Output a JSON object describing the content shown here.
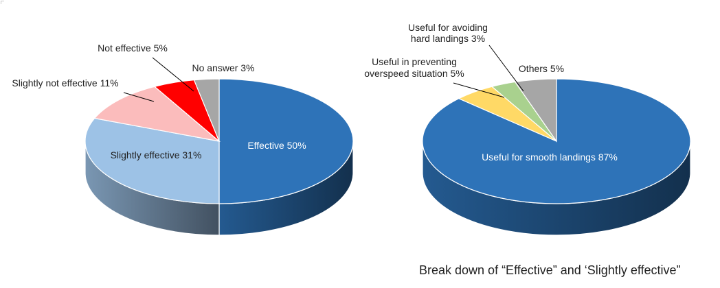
{
  "chart_data": [
    {
      "type": "pie",
      "style": "3d",
      "slices": [
        {
          "label": "Effective 50%",
          "value": 50,
          "color": "#2e73b8"
        },
        {
          "label": "Slightly effective 31%",
          "value": 31,
          "color": "#9dc2e6"
        },
        {
          "label": "Slightly not effective 11%",
          "value": 11,
          "color": "#fbbcbc"
        },
        {
          "label": "Not effective 5%",
          "value": 5,
          "color": "#ff0000"
        },
        {
          "label": "No answer 3%",
          "value": 3,
          "color": "#a6a6a6"
        }
      ]
    },
    {
      "type": "pie",
      "style": "3d",
      "slices": [
        {
          "label": "Useful for smooth landings   87%",
          "value": 87,
          "color": "#2e73b8"
        },
        {
          "label": "Useful in preventing\noverspeed situation 5%",
          "value": 5,
          "color": "#ffd966"
        },
        {
          "label": "Useful for avoiding\nhard landings 3%",
          "value": 3,
          "color": "#a9d18e"
        },
        {
          "label": "Others 5%",
          "value": 5,
          "color": "#a6a6a6"
        }
      ]
    }
  ],
  "caption": "Break down of “Effective” and ‘Slightly effective”"
}
